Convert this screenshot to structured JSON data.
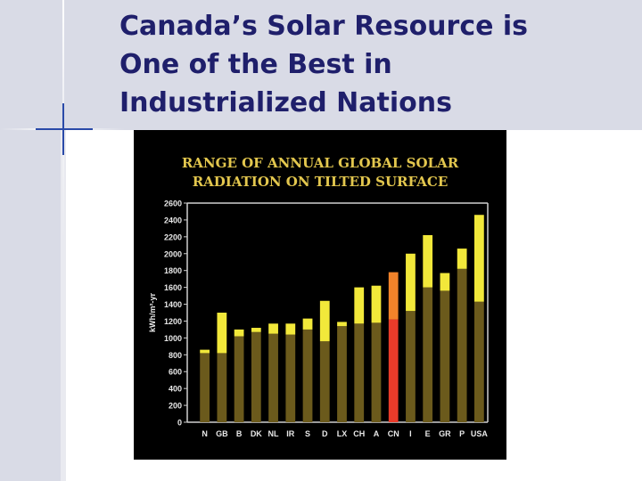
{
  "slide": {
    "title": "Canada’s Solar Resource is\nOne of the Best in\nIndustrialized Nations"
  },
  "colors": {
    "title": "#1f1f6b",
    "chart_background": "#000000",
    "chart_title": "#e3c74e",
    "bar_min": "#6b5a1c",
    "bar_range": "#f2e83a",
    "highlight_min": "#ea3b2a",
    "highlight_range": "#f2832a",
    "axis_text": "#e8e8e8"
  },
  "chart_data": {
    "type": "bar",
    "title": "RANGE OF ANNUAL GLOBAL SOLAR\nRADIATION ON TILTED SURFACE",
    "xlabel": "",
    "ylabel": "kWh/m²-yr",
    "ylim": [
      0,
      2600
    ],
    "yticks": [
      0,
      200,
      400,
      600,
      800,
      1000,
      1200,
      1400,
      1600,
      1800,
      2000,
      2200,
      2400,
      2600
    ],
    "grid": false,
    "highlight_category": "CN",
    "categories": [
      "N",
      "GB",
      "B",
      "DK",
      "NL",
      "IR",
      "S",
      "D",
      "LX",
      "CH",
      "A",
      "CN",
      "I",
      "E",
      "GR",
      "P",
      "USA"
    ],
    "series": [
      {
        "values": [
          820,
          820,
          1020,
          1070,
          1050,
          1040,
          1100,
          960,
          1140,
          1170,
          1180,
          1220,
          1320,
          1600,
          1560,
          1820,
          1430
        ]
      },
      {
        "values": [
          860,
          1300,
          1100,
          1120,
          1170,
          1170,
          1230,
          1440,
          1190,
          1600,
          1620,
          1780,
          2000,
          2220,
          1770,
          2060,
          2460
        ]
      }
    ]
  }
}
